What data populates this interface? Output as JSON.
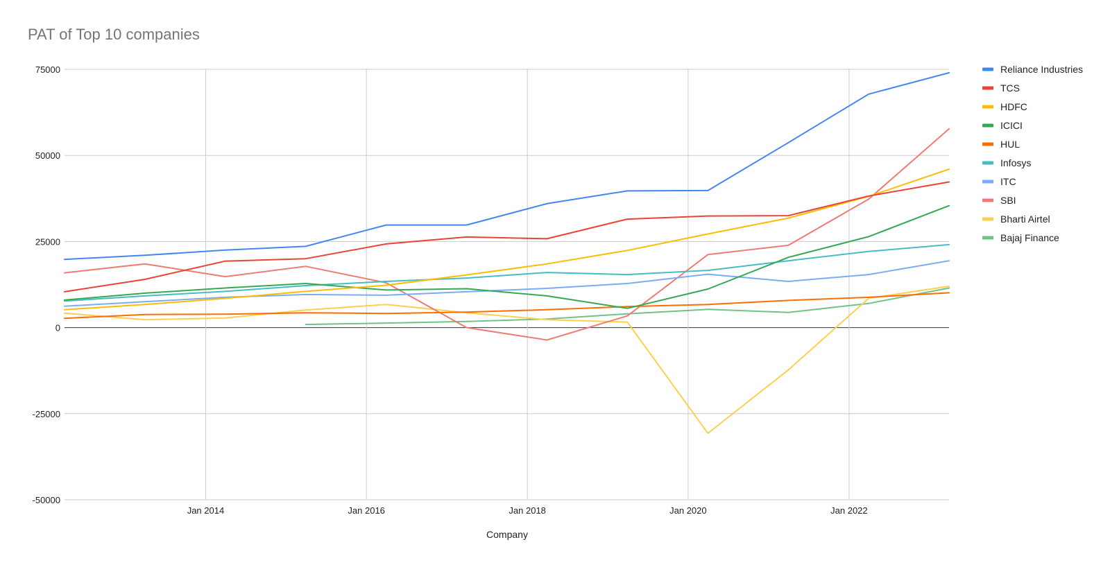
{
  "chart_data": {
    "type": "line",
    "title": "PAT of Top 10 companies",
    "xlabel": "Company",
    "ylabel": "",
    "ylim": [
      -50000,
      75000
    ],
    "yticks": [
      75000,
      50000,
      25000,
      0,
      -25000,
      -50000
    ],
    "xlim": [
      "2012-03-31",
      "2023-03-31"
    ],
    "xticks": [
      {
        "date": "2014-01-01",
        "label": "Jan 2014"
      },
      {
        "date": "2016-01-01",
        "label": "Jan 2016"
      },
      {
        "date": "2018-01-01",
        "label": "Jan 2018"
      },
      {
        "date": "2020-01-01",
        "label": "Jan 2020"
      },
      {
        "date": "2022-01-01",
        "label": "Jan 2022"
      }
    ],
    "x": [
      "2012-03-31",
      "2013-03-31",
      "2014-03-31",
      "2015-03-31",
      "2016-03-31",
      "2017-03-31",
      "2018-03-31",
      "2019-03-31",
      "2020-03-31",
      "2021-03-31",
      "2022-03-31",
      "2023-03-31"
    ],
    "grid": true,
    "legend_position": "right",
    "series": [
      {
        "name": "Reliance Industries",
        "color": "#4285f4",
        "values": [
          19800,
          21000,
          22500,
          23600,
          29800,
          29800,
          36000,
          39700,
          39800,
          53700,
          67800,
          74000
        ]
      },
      {
        "name": "TCS",
        "color": "#ea4335",
        "values": [
          10400,
          14000,
          19300,
          20000,
          24300,
          26300,
          25800,
          31500,
          32400,
          32500,
          38200,
          42300
        ]
      },
      {
        "name": "HDFC",
        "color": "#fbbc04",
        "values": [
          5200,
          6700,
          8500,
          10500,
          12300,
          15300,
          18500,
          22400,
          27200,
          31800,
          38100,
          46000
        ]
      },
      {
        "name": "ICICI",
        "color": "#34a853",
        "values": [
          8000,
          10000,
          11500,
          12800,
          10900,
          11300,
          9200,
          5600,
          11200,
          20400,
          26400,
          35400
        ]
      },
      {
        "name": "HUL",
        "color": "#ff6d01",
        "values": [
          2700,
          3800,
          3900,
          4300,
          4100,
          4500,
          5200,
          6100,
          6700,
          7900,
          8800,
          10100
        ]
      },
      {
        "name": "Infosys",
        "color": "#46bdc6",
        "values": [
          7700,
          9200,
          10500,
          12200,
          13400,
          14400,
          16000,
          15400,
          16600,
          19400,
          22100,
          24100
        ]
      },
      {
        "name": "ITC",
        "color": "#7baaf7",
        "values": [
          6200,
          7500,
          8800,
          9600,
          9400,
          10400,
          11400,
          12800,
          15500,
          13400,
          15400,
          19400
        ]
      },
      {
        "name": "SBI",
        "color": "#f07b72",
        "values": [
          15900,
          18500,
          14800,
          17800,
          13000,
          0,
          -3600,
          3400,
          21200,
          23900,
          37300,
          57700
        ]
      },
      {
        "name": "Bharti Airtel",
        "color": "#fcd04f",
        "values": [
          4200,
          2300,
          2800,
          5100,
          6700,
          4300,
          2300,
          1600,
          -30700,
          -12300,
          8500,
          12000
        ]
      },
      {
        "name": "Bajaj Finance",
        "color": "#71c287",
        "values": [
          null,
          null,
          null,
          900,
          1300,
          1800,
          2500,
          4000,
          5300,
          4400,
          7000,
          11500
        ]
      }
    ]
  }
}
